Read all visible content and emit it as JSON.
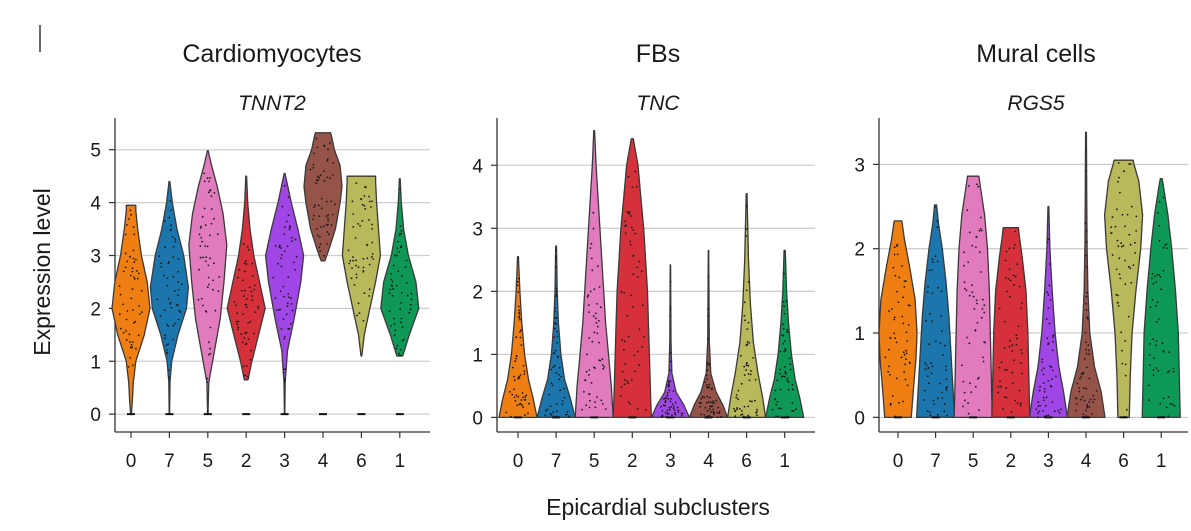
{
  "figure": {
    "ylabel": "Expression level",
    "xlabel": "Epicardial subclusters"
  },
  "chart_data": [
    {
      "type": "violin",
      "title": "Cardiomyocytes",
      "subtitle": "TNNT2",
      "ylabel": "Expression level",
      "xlabel": "Epicardial subclusters",
      "categories": [
        "0",
        "7",
        "5",
        "2",
        "3",
        "4",
        "6",
        "1"
      ],
      "colors": [
        "#f07f13",
        "#1a76ad",
        "#e27bbd",
        "#d6303a",
        "#a146e6",
        "#96534a",
        "#b8b95a",
        "#0d9955"
      ],
      "ylim": [
        -0.3,
        5.6
      ],
      "yticks": [
        0,
        1,
        2,
        3,
        4,
        5
      ],
      "grid": true,
      "violins": [
        {
          "min": 0.0,
          "max": 3.95,
          "profile": [
            [
              0.0,
              0.02
            ],
            [
              0.3,
              0.08
            ],
            [
              0.6,
              0.12
            ],
            [
              1.0,
              0.25
            ],
            [
              1.5,
              0.7
            ],
            [
              2.0,
              1.0
            ],
            [
              2.5,
              0.85
            ],
            [
              3.0,
              0.55
            ],
            [
              3.5,
              0.35
            ],
            [
              3.85,
              0.25
            ],
            [
              3.95,
              0.25
            ]
          ]
        },
        {
          "min": 0.0,
          "max": 4.4,
          "profile": [
            [
              0.0,
              0.01
            ],
            [
              0.6,
              0.03
            ],
            [
              1.0,
              0.12
            ],
            [
              1.5,
              0.45
            ],
            [
              2.0,
              0.9
            ],
            [
              2.4,
              1.0
            ],
            [
              3.0,
              0.75
            ],
            [
              3.5,
              0.4
            ],
            [
              4.0,
              0.15
            ],
            [
              4.4,
              0.02
            ]
          ]
        },
        {
          "min": 0.0,
          "max": 4.98,
          "profile": [
            [
              0.0,
              0.01
            ],
            [
              0.6,
              0.05
            ],
            [
              1.2,
              0.35
            ],
            [
              1.8,
              0.65
            ],
            [
              2.5,
              0.85
            ],
            [
              3.2,
              1.0
            ],
            [
              3.8,
              0.8
            ],
            [
              4.3,
              0.5
            ],
            [
              4.7,
              0.2
            ],
            [
              4.98,
              0.02
            ]
          ]
        },
        {
          "min": 0.65,
          "max": 4.5,
          "profile": [
            [
              0.65,
              0.1
            ],
            [
              1.0,
              0.3
            ],
            [
              1.5,
              0.65
            ],
            [
              2.0,
              1.0
            ],
            [
              2.5,
              0.7
            ],
            [
              3.0,
              0.4
            ],
            [
              3.5,
              0.2
            ],
            [
              4.0,
              0.08
            ],
            [
              4.5,
              0.02
            ]
          ]
        },
        {
          "min": 0.0,
          "max": 4.55,
          "profile": [
            [
              0.0,
              0.01
            ],
            [
              0.6,
              0.03
            ],
            [
              1.2,
              0.15
            ],
            [
              1.8,
              0.5
            ],
            [
              2.5,
              0.85
            ],
            [
              3.0,
              1.0
            ],
            [
              3.5,
              0.7
            ],
            [
              4.0,
              0.35
            ],
            [
              4.55,
              0.02
            ]
          ]
        },
        {
          "min": 2.9,
          "max": 5.32,
          "profile": [
            [
              2.9,
              0.1
            ],
            [
              3.1,
              0.3
            ],
            [
              3.5,
              0.65
            ],
            [
              4.0,
              0.9
            ],
            [
              4.3,
              1.0
            ],
            [
              4.7,
              0.9
            ],
            [
              5.0,
              0.6
            ],
            [
              5.25,
              0.45
            ],
            [
              5.32,
              0.4
            ]
          ]
        },
        {
          "min": 1.1,
          "max": 4.5,
          "profile": [
            [
              1.1,
              0.02
            ],
            [
              1.5,
              0.15
            ],
            [
              2.0,
              0.45
            ],
            [
              2.5,
              0.75
            ],
            [
              3.0,
              1.0
            ],
            [
              3.5,
              0.9
            ],
            [
              4.0,
              0.8
            ],
            [
              4.4,
              0.75
            ],
            [
              4.5,
              0.75
            ]
          ]
        },
        {
          "min": 1.1,
          "max": 4.45,
          "profile": [
            [
              1.1,
              0.15
            ],
            [
              1.5,
              0.5
            ],
            [
              2.0,
              1.0
            ],
            [
              2.5,
              0.85
            ],
            [
              3.0,
              0.45
            ],
            [
              3.5,
              0.2
            ],
            [
              4.0,
              0.08
            ],
            [
              4.45,
              0.02
            ]
          ]
        }
      ]
    },
    {
      "type": "violin",
      "title": "FBs",
      "subtitle": "TNC",
      "ylabel": "Expression level",
      "xlabel": "Epicardial subclusters",
      "categories": [
        "0",
        "7",
        "5",
        "2",
        "3",
        "4",
        "6",
        "1"
      ],
      "colors": [
        "#f07f13",
        "#1a76ad",
        "#e27bbd",
        "#d6303a",
        "#a146e6",
        "#96534a",
        "#b8b95a",
        "#0d9955"
      ],
      "ylim": [
        -0.2,
        4.75
      ],
      "yticks": [
        0,
        1,
        2,
        3,
        4
      ],
      "grid": true,
      "violins": [
        {
          "min": 0.0,
          "max": 2.55,
          "profile": [
            [
              0.0,
              1.0
            ],
            [
              0.3,
              0.8
            ],
            [
              0.6,
              0.55
            ],
            [
              1.0,
              0.35
            ],
            [
              1.5,
              0.2
            ],
            [
              2.0,
              0.1
            ],
            [
              2.55,
              0.02
            ]
          ]
        },
        {
          "min": 0.0,
          "max": 2.72,
          "profile": [
            [
              0.0,
              1.0
            ],
            [
              0.3,
              0.75
            ],
            [
              0.6,
              0.45
            ],
            [
              1.0,
              0.25
            ],
            [
              1.5,
              0.12
            ],
            [
              2.0,
              0.06
            ],
            [
              2.72,
              0.02
            ]
          ]
        },
        {
          "min": 0.0,
          "max": 4.55,
          "profile": [
            [
              0.0,
              1.0
            ],
            [
              0.5,
              0.9
            ],
            [
              1.0,
              0.75
            ],
            [
              1.5,
              0.6
            ],
            [
              2.0,
              0.5
            ],
            [
              2.5,
              0.4
            ],
            [
              3.0,
              0.3
            ],
            [
              3.5,
              0.2
            ],
            [
              4.0,
              0.1
            ],
            [
              4.55,
              0.02
            ]
          ]
        },
        {
          "min": 0.0,
          "max": 4.42,
          "profile": [
            [
              0.0,
              1.0
            ],
            [
              0.5,
              0.95
            ],
            [
              1.0,
              0.9
            ],
            [
              1.5,
              0.85
            ],
            [
              2.0,
              0.8
            ],
            [
              2.5,
              0.7
            ],
            [
              3.0,
              0.6
            ],
            [
              3.5,
              0.45
            ],
            [
              4.0,
              0.3
            ],
            [
              4.42,
              0.05
            ]
          ]
        },
        {
          "min": 0.0,
          "max": 2.42,
          "profile": [
            [
              0.0,
              1.0
            ],
            [
              0.2,
              0.7
            ],
            [
              0.4,
              0.3
            ],
            [
              0.7,
              0.08
            ],
            [
              1.2,
              0.03
            ],
            [
              2.42,
              0.01
            ]
          ]
        },
        {
          "min": 0.0,
          "max": 2.65,
          "profile": [
            [
              0.0,
              1.0
            ],
            [
              0.2,
              0.75
            ],
            [
              0.4,
              0.4
            ],
            [
              0.7,
              0.12
            ],
            [
              1.2,
              0.04
            ],
            [
              2.65,
              0.01
            ]
          ]
        },
        {
          "min": 0.0,
          "max": 3.55,
          "profile": [
            [
              0.0,
              1.0
            ],
            [
              0.3,
              0.85
            ],
            [
              0.7,
              0.6
            ],
            [
              1.2,
              0.35
            ],
            [
              1.8,
              0.2
            ],
            [
              2.5,
              0.1
            ],
            [
              3.55,
              0.02
            ]
          ]
        },
        {
          "min": 0.0,
          "max": 2.65,
          "profile": [
            [
              0.0,
              1.0
            ],
            [
              0.3,
              0.8
            ],
            [
              0.6,
              0.55
            ],
            [
              1.0,
              0.35
            ],
            [
              1.5,
              0.2
            ],
            [
              2.0,
              0.1
            ],
            [
              2.65,
              0.03
            ]
          ]
        }
      ]
    },
    {
      "type": "violin",
      "title": "Mural cells",
      "subtitle": "RGS5",
      "ylabel": "Expression level",
      "xlabel": "Epicardial subclusters",
      "categories": [
        "0",
        "7",
        "5",
        "2",
        "3",
        "4",
        "6",
        "1"
      ],
      "colors": [
        "#f07f13",
        "#1a76ad",
        "#e27bbd",
        "#d6303a",
        "#a146e6",
        "#96534a",
        "#b8b95a",
        "#0d9955"
      ],
      "ylim": [
        -0.15,
        3.55
      ],
      "yticks": [
        0,
        1,
        2,
        3
      ],
      "grid": true,
      "violins": [
        {
          "min": 0.0,
          "max": 2.33,
          "profile": [
            [
              0.0,
              0.7
            ],
            [
              0.3,
              0.8
            ],
            [
              0.7,
              0.95
            ],
            [
              1.0,
              1.0
            ],
            [
              1.4,
              0.9
            ],
            [
              1.8,
              0.6
            ],
            [
              2.1,
              0.35
            ],
            [
              2.33,
              0.2
            ]
          ]
        },
        {
          "min": 0.0,
          "max": 2.52,
          "profile": [
            [
              0.0,
              1.0
            ],
            [
              0.4,
              0.9
            ],
            [
              0.8,
              0.8
            ],
            [
              1.2,
              0.7
            ],
            [
              1.6,
              0.55
            ],
            [
              2.0,
              0.35
            ],
            [
              2.3,
              0.15
            ],
            [
              2.52,
              0.05
            ]
          ]
        },
        {
          "min": 0.0,
          "max": 2.86,
          "profile": [
            [
              0.0,
              1.0
            ],
            [
              0.5,
              0.95
            ],
            [
              1.0,
              0.9
            ],
            [
              1.5,
              0.85
            ],
            [
              2.0,
              0.75
            ],
            [
              2.4,
              0.6
            ],
            [
              2.7,
              0.4
            ],
            [
              2.86,
              0.3
            ]
          ]
        },
        {
          "min": 0.0,
          "max": 2.25,
          "profile": [
            [
              0.0,
              1.0
            ],
            [
              0.5,
              0.95
            ],
            [
              1.0,
              0.9
            ],
            [
              1.5,
              0.8
            ],
            [
              1.9,
              0.6
            ],
            [
              2.15,
              0.45
            ],
            [
              2.25,
              0.4
            ]
          ]
        },
        {
          "min": 0.0,
          "max": 2.5,
          "profile": [
            [
              0.0,
              1.0
            ],
            [
              0.3,
              0.8
            ],
            [
              0.6,
              0.55
            ],
            [
              1.0,
              0.35
            ],
            [
              1.5,
              0.2
            ],
            [
              2.0,
              0.08
            ],
            [
              2.5,
              0.02
            ]
          ]
        },
        {
          "min": 0.0,
          "max": 3.38,
          "profile": [
            [
              0.0,
              1.0
            ],
            [
              0.3,
              0.8
            ],
            [
              0.6,
              0.45
            ],
            [
              1.0,
              0.2
            ],
            [
              1.5,
              0.1
            ],
            [
              2.0,
              0.06
            ],
            [
              2.5,
              0.04
            ],
            [
              3.38,
              0.02
            ]
          ]
        },
        {
          "min": 0.0,
          "max": 3.05,
          "profile": [
            [
              0.0,
              0.3
            ],
            [
              0.5,
              0.35
            ],
            [
              1.0,
              0.45
            ],
            [
              1.5,
              0.65
            ],
            [
              2.0,
              0.9
            ],
            [
              2.4,
              1.0
            ],
            [
              2.8,
              0.8
            ],
            [
              3.0,
              0.55
            ],
            [
              3.05,
              0.5
            ]
          ]
        },
        {
          "min": 0.0,
          "max": 2.83,
          "profile": [
            [
              0.0,
              1.0
            ],
            [
              0.5,
              0.95
            ],
            [
              1.0,
              0.9
            ],
            [
              1.5,
              0.75
            ],
            [
              2.0,
              0.55
            ],
            [
              2.4,
              0.35
            ],
            [
              2.7,
              0.15
            ],
            [
              2.83,
              0.05
            ]
          ]
        }
      ]
    }
  ]
}
